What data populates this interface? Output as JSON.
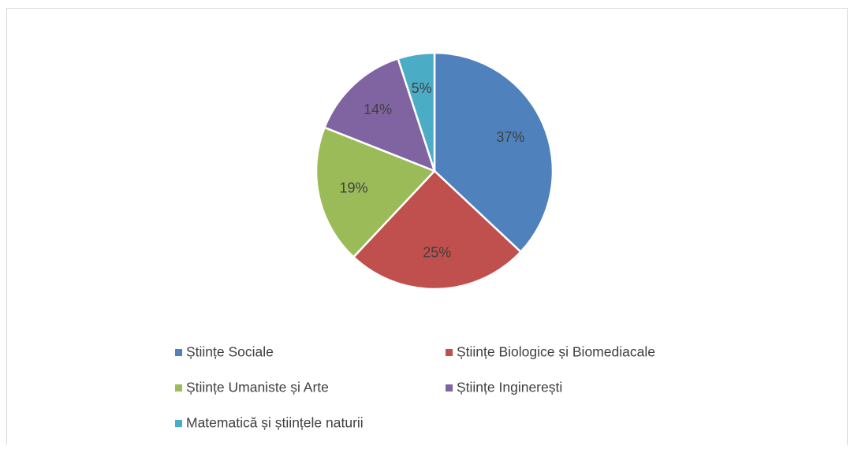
{
  "chart_data": {
    "type": "pie",
    "categories": [
      "Științe Sociale",
      "Științe Biologice și Biomediacale",
      "Științe Umaniste și Arte",
      "Științe Inginerești",
      "Matematică și științele naturii"
    ],
    "values": [
      37,
      25,
      19,
      14,
      5
    ],
    "value_labels": [
      "37%",
      "25%",
      "19%",
      "14%",
      "5%"
    ],
    "colors": [
      "#4f81bd",
      "#c0504d",
      "#9bbb59",
      "#8064a2",
      "#4bacc6"
    ],
    "legend": "bottom"
  }
}
